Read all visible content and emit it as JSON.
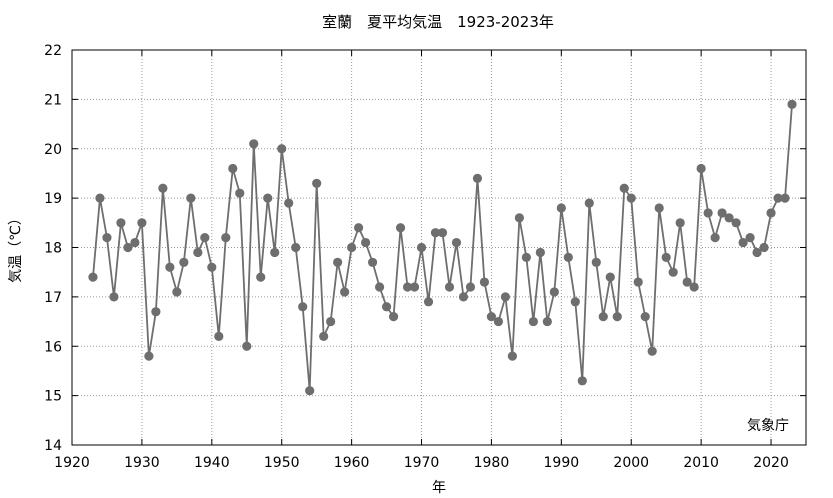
{
  "chart_data": {
    "type": "line",
    "title": "室蘭　夏平均気温　1923-2023年",
    "xlabel": "年",
    "ylabel": "気温（℃）",
    "source": "気象庁",
    "xlim": [
      1920,
      2025
    ],
    "ylim": [
      14,
      22
    ],
    "xticks": [
      1920,
      1930,
      1940,
      1950,
      1960,
      1970,
      1980,
      1990,
      2000,
      2010,
      2020
    ],
    "yticks": [
      14,
      15,
      16,
      17,
      18,
      19,
      20,
      21,
      22
    ],
    "grid": true,
    "colors": {
      "line": "#6e6e6e",
      "marker": "#6e6e6e",
      "grid": "#9a9a9a",
      "axis": "#000000"
    },
    "series": [
      {
        "x": [
          1923,
          1924,
          1925,
          1926,
          1927,
          1928,
          1929,
          1930,
          1931,
          1932,
          1933,
          1934,
          1935,
          1936,
          1937,
          1938,
          1939,
          1940,
          1941,
          1942,
          1943,
          1944,
          1945,
          1946,
          1947,
          1948,
          1949,
          1950,
          1951,
          1952,
          1953,
          1954,
          1955,
          1956,
          1957,
          1958,
          1959,
          1960,
          1961,
          1962,
          1963,
          1964,
          1965,
          1966,
          1967,
          1968,
          1969,
          1970,
          1971,
          1972,
          1973,
          1974,
          1975,
          1976,
          1977,
          1978,
          1979,
          1980,
          1981,
          1982,
          1983,
          1984,
          1985,
          1986,
          1987,
          1988,
          1989,
          1990,
          1991,
          1992,
          1993,
          1994,
          1995,
          1996,
          1997,
          1998,
          1999,
          2000,
          2001,
          2002,
          2003,
          2004,
          2005,
          2006,
          2007,
          2008,
          2009,
          2010,
          2011,
          2012,
          2013,
          2014,
          2015,
          2016,
          2017,
          2018,
          2019,
          2020,
          2021,
          2022,
          2023
        ],
        "y": [
          17.4,
          19.0,
          18.2,
          17.0,
          18.5,
          18.0,
          18.1,
          18.5,
          15.8,
          16.7,
          19.2,
          17.6,
          17.1,
          17.7,
          19.0,
          17.9,
          18.2,
          17.6,
          16.2,
          18.2,
          19.6,
          19.1,
          16.0,
          20.1,
          17.4,
          19.0,
          17.9,
          20.0,
          18.9,
          18.0,
          16.8,
          15.1,
          19.3,
          16.2,
          16.5,
          17.7,
          17.1,
          18.0,
          18.4,
          18.1,
          17.7,
          17.2,
          16.8,
          16.6,
          18.4,
          17.2,
          17.2,
          18.0,
          16.9,
          18.3,
          18.3,
          17.2,
          18.1,
          17.0,
          17.2,
          19.4,
          17.3,
          16.6,
          16.5,
          17.0,
          15.8,
          18.6,
          17.8,
          16.5,
          17.9,
          16.5,
          17.1,
          18.8,
          17.8,
          16.9,
          15.3,
          18.9,
          17.7,
          16.6,
          17.4,
          16.6,
          19.2,
          19.0,
          17.3,
          16.6,
          15.9,
          18.8,
          17.8,
          17.5,
          18.5,
          17.3,
          17.2,
          19.6,
          18.7,
          18.2,
          18.7,
          18.6,
          18.5,
          18.1,
          18.2,
          17.9,
          18.0,
          18.7,
          19.0,
          19.0,
          20.9
        ]
      }
    ]
  }
}
